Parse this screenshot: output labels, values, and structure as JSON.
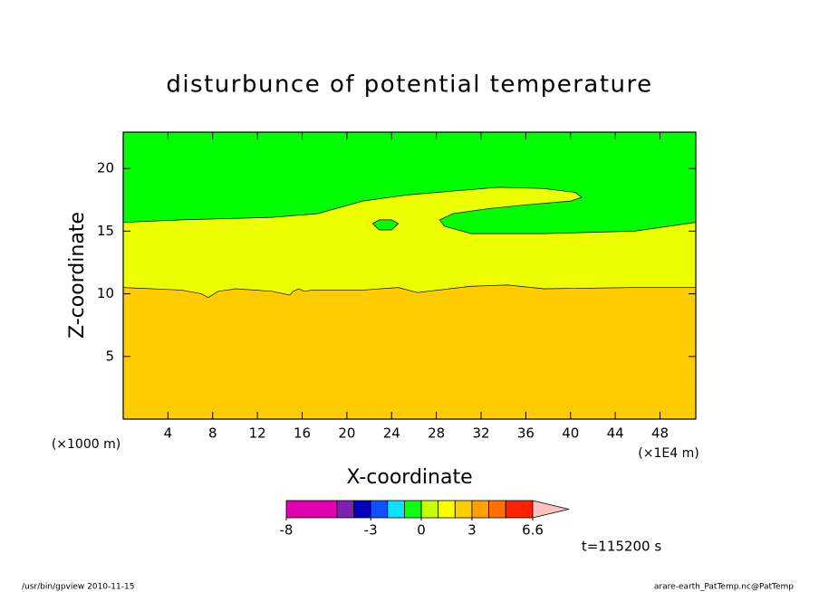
{
  "chart_data": {
    "type": "contour",
    "title": "disturbunce of potential temperature",
    "x_label": "X-coordinate",
    "y_label": "Z-coordinate",
    "x_unit_left": "(×1000 m)",
    "x_unit_right": "(×1E4 m)",
    "xlim": [
      0,
      51.2
    ],
    "ylim": [
      0,
      22.9
    ],
    "xticks": [
      4,
      8,
      12,
      16,
      20,
      24,
      28,
      32,
      36,
      40,
      44,
      48
    ],
    "yticks": [
      5,
      10,
      15,
      20
    ],
    "background": "#00ff00",
    "regions": [
      {
        "color": "#eeff00",
        "closed": false,
        "x": [
          0,
          5.2,
          13.3,
          17.4,
          21.4,
          25.5,
          29.5,
          33.6,
          37.6,
          40.4,
          41.0,
          40.0,
          36.0,
          32.7,
          29.5,
          28.3,
          28.7,
          31.1,
          37.6,
          45.7,
          51.2
        ],
        "y": [
          15.7,
          15.9,
          16.1,
          16.4,
          17.4,
          17.9,
          18.2,
          18.5,
          18.4,
          18.1,
          17.7,
          17.4,
          17.1,
          16.8,
          16.4,
          15.9,
          15.4,
          14.8,
          14.8,
          15.0,
          15.7
        ]
      },
      {
        "color": "#ffcc00",
        "closed": false,
        "x": [
          0,
          5.2,
          7.0,
          7.6,
          8.5,
          10.1,
          13.3,
          14.9,
          15.2,
          15.7,
          16.2,
          16.9,
          21.4,
          24.6,
          26.3,
          31.1,
          34.4,
          37.6,
          45.7,
          51.2
        ],
        "y": [
          10.5,
          10.3,
          10.0,
          9.7,
          10.2,
          10.4,
          10.2,
          9.9,
          10.2,
          10.4,
          10.2,
          10.3,
          10.3,
          10.5,
          10.1,
          10.6,
          10.7,
          10.4,
          10.5,
          10.5
        ]
      },
      {
        "color": "#00ff00",
        "closed": true,
        "x": [
          22.3,
          22.9,
          24.0,
          24.6,
          24.0,
          22.9
        ],
        "y": [
          15.6,
          15.9,
          15.9,
          15.6,
          15.1,
          15.1
        ]
      }
    ],
    "colorbar": {
      "bounds": [
        -8,
        -5,
        -4,
        -3,
        -2,
        -1,
        0,
        1,
        2,
        3,
        4,
        5,
        6.6
      ],
      "colors": [
        "#e000b0",
        "#8020b0",
        "#0000c0",
        "#1050ff",
        "#10e0ff",
        "#10ff10",
        "#c8ff00",
        "#ffff00",
        "#ffcc00",
        "#ffa000",
        "#ff7000",
        "#ff2000",
        "#ff8080"
      ],
      "extend_color": "#ffc0c0",
      "ticks": [
        -8,
        -3,
        0,
        3,
        6.6
      ]
    },
    "time_label": "t=115200 s",
    "footer_left": "/usr/bin/gpview  2010-11-15",
    "footer_right": "arare-earth_PatTemp.nc@PatTemp"
  }
}
